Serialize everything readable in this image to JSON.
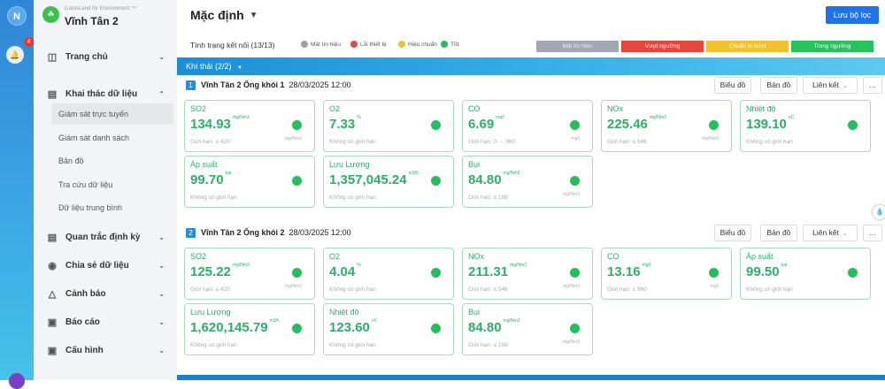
{
  "rail": {
    "logo": "N",
    "notification_count": "4"
  },
  "sidebar": {
    "brand_subtitle": "iLotusLand for Environment ™",
    "brand_title": "Vĩnh Tân 2",
    "items": [
      {
        "label": "Trang chủ",
        "icon": "layout-icon"
      },
      {
        "label": "Khai thác dữ liệu",
        "icon": "monitor-data-icon",
        "expanded": true,
        "children": [
          "Giám sát trực tuyến",
          "Giám sát danh sách",
          "Bản đồ",
          "Tra cứu dữ liệu",
          "Dữ liệu trung bình"
        ]
      },
      {
        "label": "Quan trắc định kỳ",
        "icon": "clipboard-icon"
      },
      {
        "label": "Chia sẻ dữ liệu",
        "icon": "share-icon"
      },
      {
        "label": "Cảnh báo",
        "icon": "alarm-icon"
      },
      {
        "label": "Báo cáo",
        "icon": "report-icon"
      },
      {
        "label": "Cấu hình",
        "icon": "config-icon"
      }
    ]
  },
  "header": {
    "title": "Mặc định",
    "save_filter": "Lưu bộ lọc"
  },
  "status": {
    "label": "Tình trạng kết nối (13/13)",
    "legend": [
      {
        "label": "Mất tín hiệu",
        "color": "#9aa0ac"
      },
      {
        "label": "Lỗi thiết bị",
        "color": "#e04a3f"
      },
      {
        "label": "Hiệu chuẩn",
        "color": "#f0c030"
      },
      {
        "label": "Tốt",
        "color": "#22c05a"
      }
    ],
    "bar": [
      {
        "label": "Mất tín hiệu",
        "color": "#a3a7b3",
        "text": "#eee"
      },
      {
        "label": "Vượt ngưỡng",
        "color": "#e8453c",
        "text": "#fff"
      },
      {
        "label": "Chuẩn bị vượt",
        "color": "#f2c12e",
        "text": "#fff"
      },
      {
        "label": "Trong ngưỡng",
        "color": "#27c25c",
        "text": "#fff"
      }
    ]
  },
  "group": {
    "label": "Khí thải (2/2)"
  },
  "actions": {
    "chart": "Biểu đồ",
    "map": "Bản đồ",
    "link": "Liên kết",
    "more": "..."
  },
  "stations": [
    {
      "num": "1",
      "name": "Vĩnh Tân 2 Ống khói 1",
      "time": "28/03/2025 12:00",
      "cards": [
        {
          "name": "SO2",
          "value": "134.93",
          "unit": "mg/Nm3",
          "limit": "Giới hạn: ≤ 420",
          "unit2": "mg/Nm3"
        },
        {
          "name": "O2",
          "value": "7.33",
          "unit": "%",
          "limit": "Không có giới hạn",
          "unit2": ""
        },
        {
          "name": "CO",
          "value": "6.69",
          "unit": "mg/l",
          "limit": "Giới hạn: 0 → 960",
          "unit2": "mg/l"
        },
        {
          "name": "NOx",
          "value": "225.46",
          "unit": "mg/Nm3",
          "limit": "Giới hạn: ≤ 546",
          "unit2": "mg/Nm3"
        },
        {
          "name": "Nhiệt độ",
          "value": "139.10",
          "unit": "oC",
          "limit": "Không có giới hạn",
          "unit2": ""
        },
        {
          "name": "Áp suất",
          "value": "99.70",
          "unit": "bar",
          "limit": "Không có giới hạn",
          "unit2": ""
        },
        {
          "name": "Lưu Lượng",
          "value": "1,357,045.24",
          "unit": "m3/h",
          "limit": "Không có giới hạn",
          "unit2": ""
        },
        {
          "name": "Bụi",
          "value": "84.80",
          "unit": "mg/Nm3",
          "limit": "Giới hạn: ≤ 168",
          "unit2": "mg/Nm3"
        }
      ]
    },
    {
      "num": "2",
      "name": "Vĩnh Tân 2 Ống khói 2",
      "time": "28/03/2025 12:00",
      "cards": [
        {
          "name": "SO2",
          "value": "125.22",
          "unit": "mg/Nm3",
          "limit": "Giới hạn: ≤ 420",
          "unit2": "mg/Nm3"
        },
        {
          "name": "O2",
          "value": "4.04",
          "unit": "%",
          "limit": "Không có giới hạn",
          "unit2": ""
        },
        {
          "name": "NOx",
          "value": "211.31",
          "unit": "mg/Nm3",
          "limit": "Giới hạn: ≤ 546",
          "unit2": "mg/Nm3"
        },
        {
          "name": "CO",
          "value": "13.16",
          "unit": "mg/l",
          "limit": "Giới hạn: ≤ 960",
          "unit2": "mg/l"
        },
        {
          "name": "Áp suất",
          "value": "99.50",
          "unit": "bar",
          "limit": "Không có giới hạn",
          "unit2": ""
        },
        {
          "name": "Lưu Lượng",
          "value": "1,620,145.79",
          "unit": "m3/h",
          "limit": "Không có giới hạn",
          "unit2": ""
        },
        {
          "name": "Nhiệt độ",
          "value": "123.60",
          "unit": "oC",
          "limit": "Không có giới hạn",
          "unit2": ""
        },
        {
          "name": "Bụi",
          "value": "84.80",
          "unit": "mg/Nm3",
          "limit": "Giới hạn: ≤ 168",
          "unit2": "mg/Nm3"
        }
      ]
    }
  ]
}
